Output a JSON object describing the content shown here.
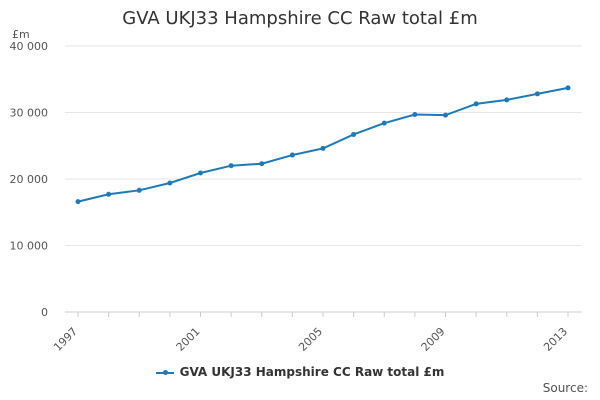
{
  "chart_data": {
    "type": "line",
    "title": "GVA UKJ33 Hampshire CC Raw total £m",
    "ylabel": "£m",
    "xlabel": "",
    "x": [
      1997,
      1998,
      1999,
      2000,
      2001,
      2002,
      2003,
      2004,
      2005,
      2006,
      2007,
      2008,
      2009,
      2010,
      2011,
      2012,
      2013
    ],
    "x_tick_labels": [
      "1997",
      "2001",
      "2005",
      "2009",
      "2013"
    ],
    "y_tick_labels": [
      "0",
      "10 000",
      "20 000",
      "30 000",
      "40 000"
    ],
    "ylim": [
      0,
      40000
    ],
    "grid": true,
    "legend_position": "bottom",
    "series": [
      {
        "name": "GVA UKJ33 Hampshire CC Raw total £m",
        "color": "#1f7ab8",
        "values": [
          16600,
          17700,
          18300,
          19400,
          20900,
          22000,
          22300,
          23600,
          24600,
          26700,
          28400,
          29700,
          29600,
          31300,
          31900,
          32800,
          33700
        ]
      }
    ]
  },
  "footer": {
    "source_label": "Source:"
  }
}
